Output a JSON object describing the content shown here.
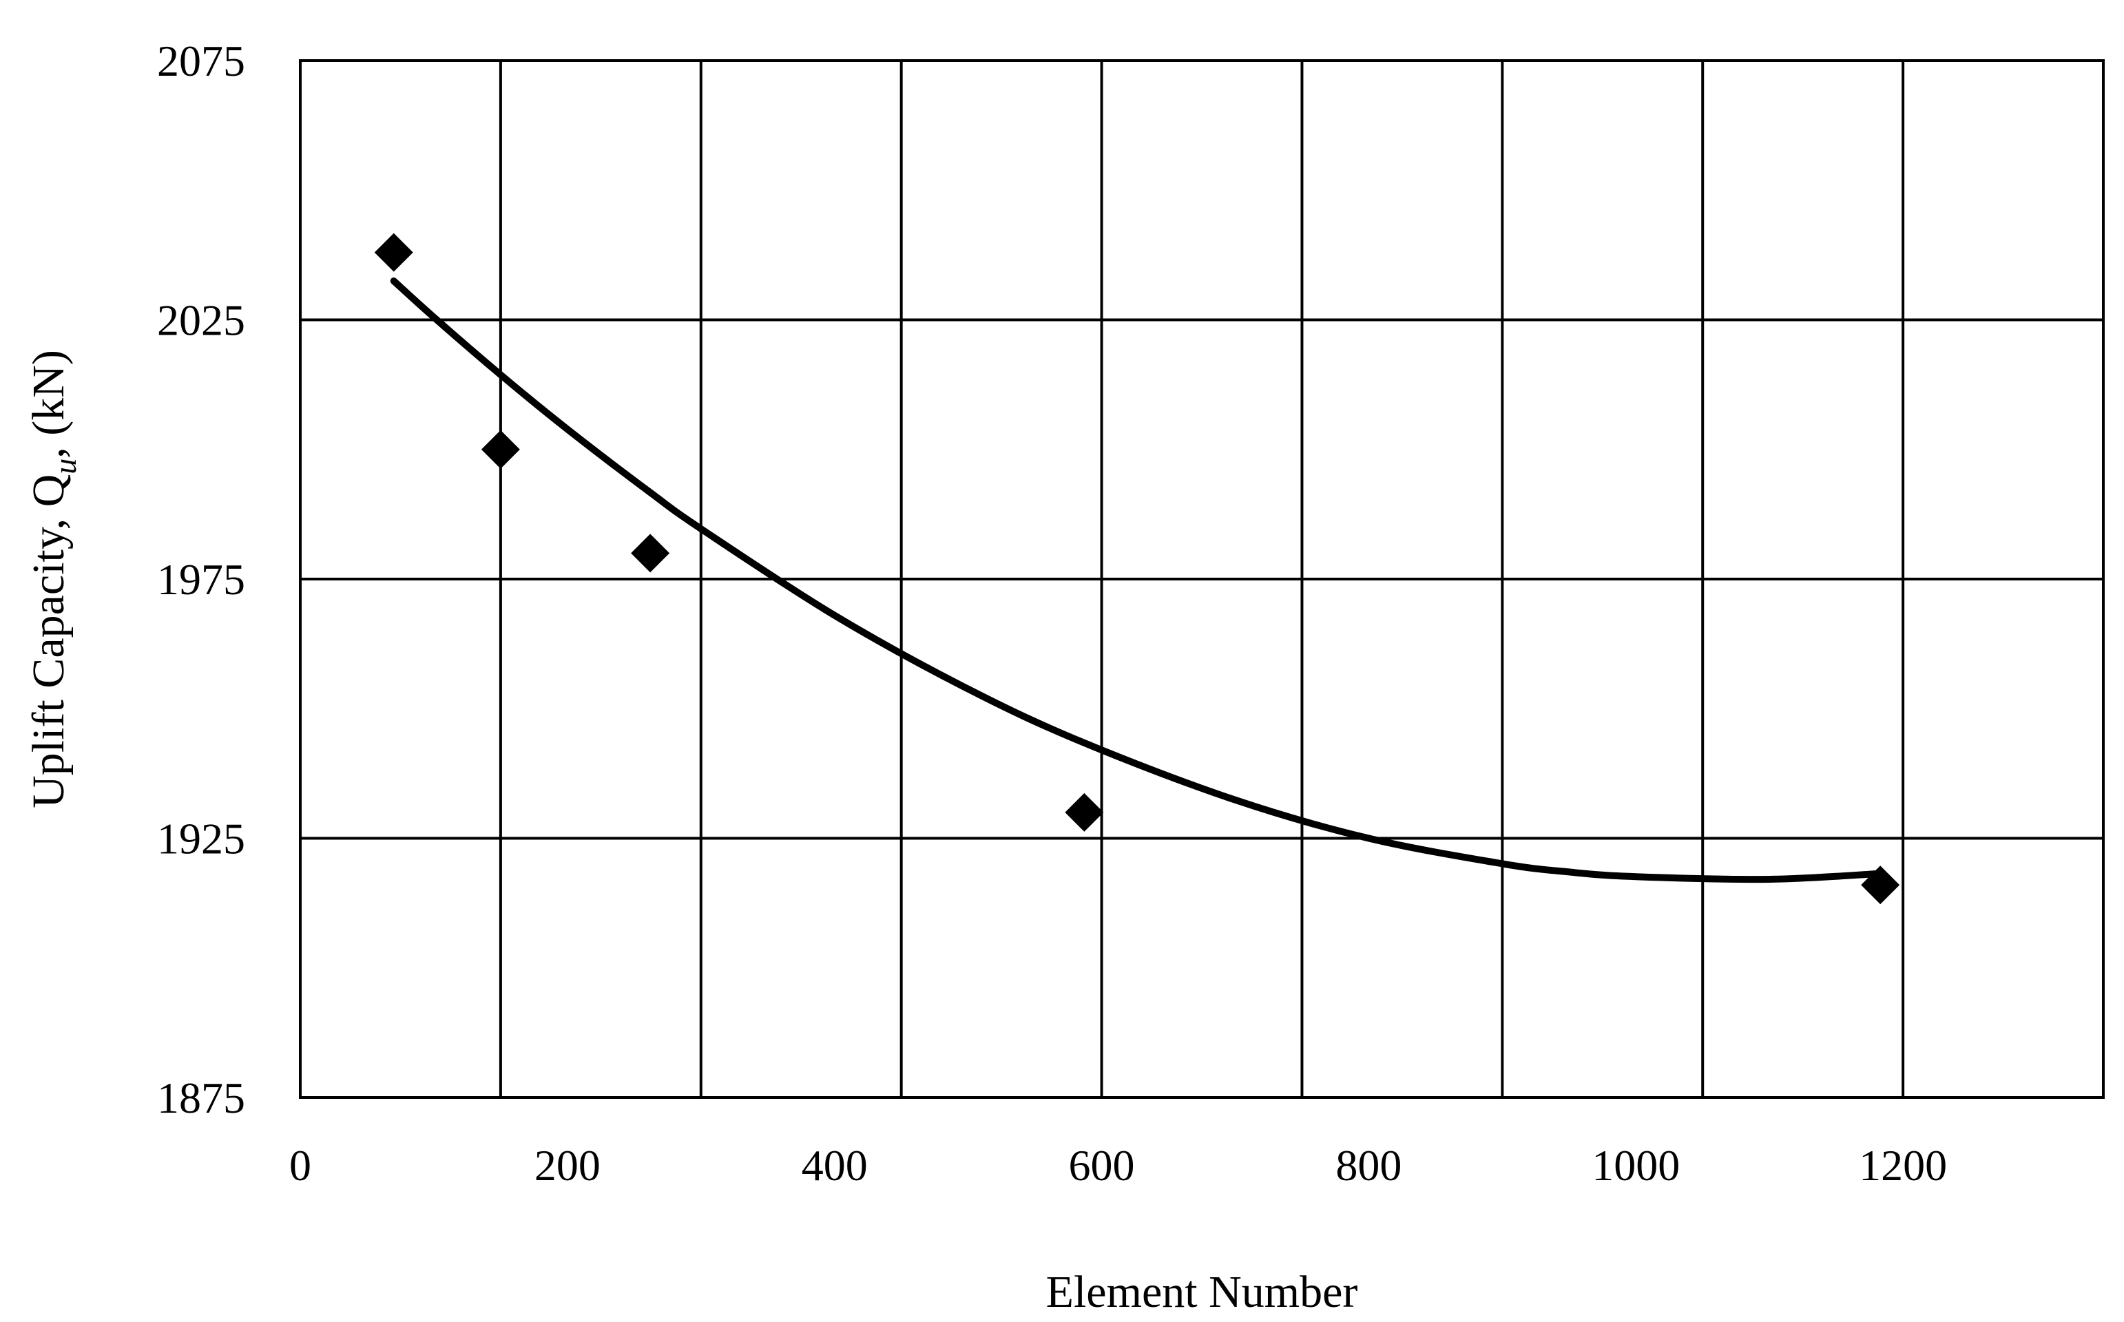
{
  "chart_data": {
    "type": "scatter",
    "xlabel": "Element Number",
    "ylabel": {
      "prefix": "Uplift Capacity, Q",
      "subscript": "u",
      "suffix": ", (kN)"
    },
    "xlim": [
      0,
      1350
    ],
    "ylim": [
      1875,
      2075
    ],
    "x_ticks": [
      "0",
      "200",
      "400",
      "600",
      "800",
      "1000",
      "1200"
    ],
    "y_ticks": [
      "1875",
      "1925",
      "1975",
      "2025",
      "2075"
    ],
    "grid": true,
    "x_gridlines": [
      150,
      300,
      450,
      600,
      750,
      900,
      1050,
      1200
    ],
    "y_gridlines": [
      1925,
      1975,
      2025
    ],
    "series": [
      {
        "marker": "diamond",
        "x": [
          70,
          150,
          262,
          587,
          1183
        ],
        "y": [
          2038,
          2000,
          1980,
          1930,
          1916
        ]
      }
    ],
    "trendline": {
      "type": "polynomial",
      "x": [
        70,
        100,
        150,
        200,
        262,
        300,
        400,
        500,
        587,
        700,
        800,
        900,
        950,
        1000,
        1100,
        1183
      ],
      "y": [
        2032.5,
        2025.5,
        2014.4,
        2003.9,
        1991.7,
        1984.7,
        1968.0,
        1953.8,
        1943.4,
        1932.4,
        1925.0,
        1920.1,
        1918.5,
        1917.6,
        1917.1,
        1918.2
      ]
    },
    "colors": {
      "marker": "#000000",
      "line": "#000000",
      "grid": "#000000"
    }
  }
}
